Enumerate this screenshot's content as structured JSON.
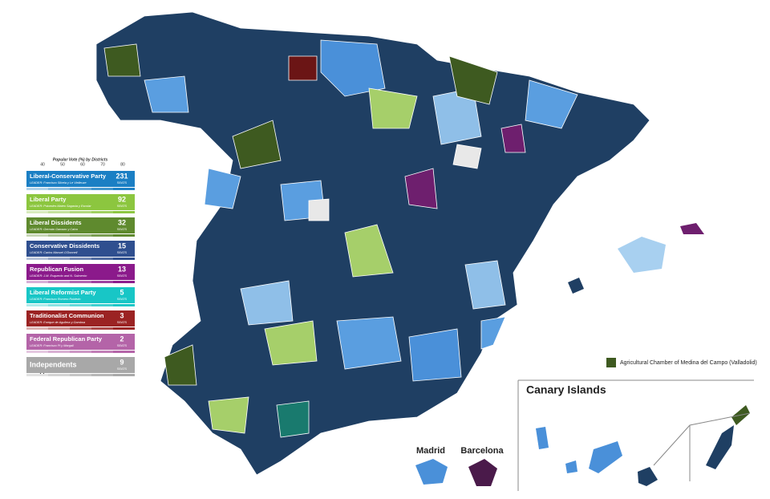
{
  "legend": {
    "scale_title": "Popular Vote (%) by Districts",
    "scale_ticks": [
      40,
      50,
      60,
      70,
      80
    ],
    "seats_label": "SEATS",
    "parties": [
      {
        "name": "Liberal-Conservative Party",
        "leader": "LEADER: Francisco Silvela y Le Vielleuze",
        "seats": 231,
        "color": "#1b7fc4"
      },
      {
        "name": "Liberal Party",
        "leader": "LEADER: Práxedes Mateo Sagasta y Escolar",
        "seats": 92,
        "color": "#8cc63f"
      },
      {
        "name": "Liberal Dissidents",
        "leader": "LEADER: Germán Gamazo y Calvo",
        "seats": 32,
        "color": "#5f8a2e"
      },
      {
        "name": "Conservative Dissidents",
        "leader": "LEADER: Carlos Manuel O'Donnell",
        "seats": 15,
        "color": "#2f4f8f"
      },
      {
        "name": "Republican Fusion",
        "leader": "LEADER: J.M. Esquerdo and N. Salmerón",
        "seats": 13,
        "color": "#8b1a8b"
      },
      {
        "name": "Liberal Reformist Party",
        "leader": "LEADER: Francisco Romero Robledo",
        "seats": 5,
        "color": "#18c6c6"
      },
      {
        "name": "Traditionalist Communion",
        "leader": "LEADER: Enrique de Aguilera y Gamboa",
        "seats": 3,
        "color": "#9b2323"
      },
      {
        "name": "Federal Republican Party",
        "leader": "LEADER: Francisco Pi y Margall",
        "seats": 2,
        "color": "#b464a8"
      },
      {
        "name": "Independents",
        "seats": 9,
        "color": "#a8a8a8"
      }
    ],
    "footnote": "* Unopposed Candidate"
  },
  "map": {
    "agricultural_chamber": "Agricultural Chamber of Medina del Campo (Valladolid)",
    "madrid": "Madrid",
    "barcelona": "Barcelona",
    "canary_islands": "Canary Islands"
  }
}
